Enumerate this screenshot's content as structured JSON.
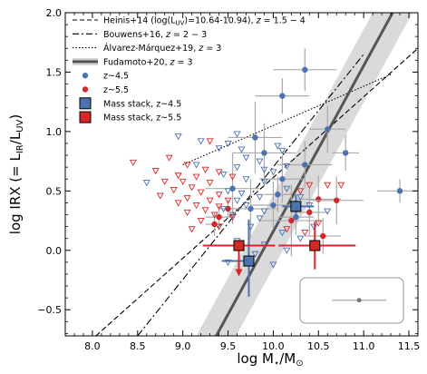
{
  "chart_data": {
    "type": "scatter",
    "xlabel_main": "log M",
    "xlabel_sub": "⋆",
    "xlabel_rest": "/M",
    "xlabel_sub2": "⊙",
    "ylabel": "log IRX (= L",
    "ylabel_sub1": "IR",
    "ylabel_mid": "/L",
    "ylabel_sub2": "UV",
    "ylabel_end": ")",
    "xlim": [
      7.7,
      11.6
    ],
    "ylim": [
      -0.72,
      2.0
    ],
    "xticks": [
      "8.0",
      "8.5",
      "9.0",
      "9.5",
      "10.0",
      "10.5",
      "11.0",
      "11.5"
    ],
    "xtick_values": [
      8.0,
      8.5,
      9.0,
      9.5,
      10.0,
      10.5,
      11.0,
      11.5
    ],
    "yticks": [
      "−0.5",
      "0.0",
      "0.5",
      "1.0",
      "1.5",
      "2.0"
    ],
    "ytick_values": [
      -0.5,
      0.0,
      0.5,
      1.0,
      1.5,
      2.0
    ],
    "legend": [
      {
        "style": "dashed",
        "text": "Heinis+14 (log(L",
        "sub": "UV",
        "text2": ")=10.64-10.94), ",
        "italic": "z",
        "text3": " = 1.5 − 4"
      },
      {
        "style": "dashdot",
        "text": "Bouwens+16, ",
        "italic": "z",
        "text3": " = 2 − 3"
      },
      {
        "style": "dotted",
        "text": "Álvarez-Márquez+19, ",
        "italic": "z",
        "text3": " = 3"
      },
      {
        "style": "band",
        "text": "Fudamoto+20, ",
        "italic": "z",
        "text3": " = 3"
      },
      {
        "style": "blue-dot",
        "text": "z~4.5"
      },
      {
        "style": "red-dot",
        "text": "z~5.5"
      },
      {
        "style": "blue-square",
        "text": "Mass stack, z~4.5"
      },
      {
        "style": "red-square",
        "text": "Mass stack, z~5.5"
      }
    ],
    "colors": {
      "blue": "#4c72b0",
      "red": "#d62728",
      "band": "#d3d3d3",
      "fudamoto": "#555555"
    },
    "lines": {
      "heinis": {
        "x": [
          7.7,
          11.6
        ],
        "y": [
          -0.95,
          1.7
        ]
      },
      "bouwens": {
        "x": [
          8.5,
          11.0
        ],
        "y": [
          -0.72,
          1.65
        ]
      },
      "alvarez": {
        "x": [
          9.0,
          11.3
        ],
        "y": [
          0.72,
          1.48
        ]
      },
      "fudamoto": {
        "x": [
          9.37,
          11.32
        ],
        "y": [
          -0.72,
          2.0
        ]
      }
    },
    "series": [
      {
        "name": "z~4.5",
        "marker": "circle",
        "color": "blue",
        "points": [
          {
            "x": 10.35,
            "y": 1.52,
            "xerr": 0.35,
            "yerr": 0.18
          },
          {
            "x": 10.1,
            "y": 1.3,
            "xerr": 0.3,
            "yerr": 0.15
          },
          {
            "x": 10.6,
            "y": 1.02,
            "xerr": 0.2,
            "yerr": 0.2
          },
          {
            "x": 9.8,
            "y": 0.95,
            "xerr": 0.3,
            "yerr": 0.3
          },
          {
            "x": 9.9,
            "y": 0.82,
            "xerr": 0.35,
            "yerr": 0.25
          },
          {
            "x": 10.8,
            "y": 0.82,
            "xerr": 0.15,
            "yerr": 0.15
          },
          {
            "x": 10.35,
            "y": 0.72,
            "xerr": 0.3,
            "yerr": 0.2
          },
          {
            "x": 10.1,
            "y": 0.6,
            "xerr": 0.25,
            "yerr": 0.2
          },
          {
            "x": 11.4,
            "y": 0.5,
            "xerr": 0.25,
            "yerr": 0.1
          },
          {
            "x": 9.55,
            "y": 0.52,
            "xerr": 0.3,
            "yerr": 0.3
          },
          {
            "x": 10.05,
            "y": 0.47,
            "xerr": 0.15,
            "yerr": 0.15
          },
          {
            "x": 10.0,
            "y": 0.38,
            "xerr": 0.25,
            "yerr": 0.2
          },
          {
            "x": 9.75,
            "y": 0.35,
            "xerr": 0.3,
            "yerr": 0.25
          },
          {
            "x": 10.25,
            "y": 0.28,
            "xerr": 0.2,
            "yerr": 0.15
          }
        ]
      },
      {
        "name": "z~5.5",
        "marker": "circle",
        "color": "red",
        "points": [
          {
            "x": 9.5,
            "y": 0.35,
            "xerr": 0.1,
            "yerr": 0.08
          },
          {
            "x": 9.4,
            "y": 0.28,
            "xerr": 0.15,
            "yerr": 0.1
          },
          {
            "x": 9.35,
            "y": 0.22,
            "xerr": 0.1,
            "yerr": 0.1
          },
          {
            "x": 10.5,
            "y": 0.43,
            "xerr": 0.25,
            "yerr": 0.2
          },
          {
            "x": 10.7,
            "y": 0.42,
            "xerr": 0.3,
            "yerr": 0.2
          },
          {
            "x": 10.4,
            "y": 0.32,
            "xerr": 0.2,
            "yerr": 0.2
          },
          {
            "x": 10.2,
            "y": 0.25,
            "xerr": 0.35,
            "yerr": 0.3
          },
          {
            "x": 10.55,
            "y": 0.12,
            "xerr": 0.2,
            "yerr": 0.15
          }
        ]
      },
      {
        "name": "z~4.5 upper limits",
        "marker": "triangle",
        "color": "blue",
        "points": [
          {
            "x": 8.95,
            "y": 0.96
          },
          {
            "x": 9.6,
            "y": 0.98
          },
          {
            "x": 9.2,
            "y": 0.92
          },
          {
            "x": 9.5,
            "y": 0.9
          },
          {
            "x": 10.05,
            "y": 0.88
          },
          {
            "x": 9.4,
            "y": 0.86
          },
          {
            "x": 9.65,
            "y": 0.85
          },
          {
            "x": 10.1,
            "y": 0.84
          },
          {
            "x": 9.7,
            "y": 0.78
          },
          {
            "x": 9.85,
            "y": 0.75
          },
          {
            "x": 9.15,
            "y": 0.72
          },
          {
            "x": 10.15,
            "y": 0.71
          },
          {
            "x": 9.6,
            "y": 0.7
          },
          {
            "x": 9.9,
            "y": 0.68
          },
          {
            "x": 10.0,
            "y": 0.66
          },
          {
            "x": 9.45,
            "y": 0.64
          },
          {
            "x": 8.6,
            "y": 0.57
          },
          {
            "x": 9.7,
            "y": 0.6
          },
          {
            "x": 9.9,
            "y": 0.58
          },
          {
            "x": 10.15,
            "y": 0.52
          },
          {
            "x": 9.5,
            "y": 0.5
          },
          {
            "x": 9.65,
            "y": 0.48
          },
          {
            "x": 9.85,
            "y": 0.45
          },
          {
            "x": 10.3,
            "y": 0.45
          },
          {
            "x": 9.6,
            "y": 0.42
          },
          {
            "x": 9.7,
            "y": 0.38
          },
          {
            "x": 10.4,
            "y": 0.38
          },
          {
            "x": 9.45,
            "y": 0.35
          },
          {
            "x": 9.9,
            "y": 0.33
          },
          {
            "x": 10.6,
            "y": 0.33
          },
          {
            "x": 9.55,
            "y": 0.3
          },
          {
            "x": 9.85,
            "y": 0.27
          },
          {
            "x": 10.45,
            "y": 0.2
          },
          {
            "x": 9.75,
            "y": 0.2
          },
          {
            "x": 10.1,
            "y": 0.15
          },
          {
            "x": 10.3,
            "y": 0.1
          },
          {
            "x": 9.6,
            "y": 0.08
          },
          {
            "x": 9.9,
            "y": 0.05
          },
          {
            "x": 10.15,
            "y": 0.0
          },
          {
            "x": 9.8,
            "y": -0.03
          },
          {
            "x": 10.0,
            "y": -0.12
          },
          {
            "x": 9.5,
            "y": -0.1
          }
        ]
      },
      {
        "name": "z~5.5 upper limits",
        "marker": "triangle",
        "color": "red",
        "points": [
          {
            "x": 9.3,
            "y": 0.92
          },
          {
            "x": 8.85,
            "y": 0.78
          },
          {
            "x": 8.45,
            "y": 0.74
          },
          {
            "x": 9.05,
            "y": 0.72
          },
          {
            "x": 9.25,
            "y": 0.68
          },
          {
            "x": 8.7,
            "y": 0.67
          },
          {
            "x": 9.4,
            "y": 0.66
          },
          {
            "x": 8.95,
            "y": 0.63
          },
          {
            "x": 9.15,
            "y": 0.62
          },
          {
            "x": 9.55,
            "y": 0.62
          },
          {
            "x": 8.8,
            "y": 0.58
          },
          {
            "x": 9.0,
            "y": 0.58
          },
          {
            "x": 9.3,
            "y": 0.57
          },
          {
            "x": 9.1,
            "y": 0.53
          },
          {
            "x": 8.9,
            "y": 0.51
          },
          {
            "x": 9.2,
            "y": 0.49
          },
          {
            "x": 9.4,
            "y": 0.47
          },
          {
            "x": 8.75,
            "y": 0.46
          },
          {
            "x": 9.05,
            "y": 0.44
          },
          {
            "x": 9.3,
            "y": 0.42
          },
          {
            "x": 9.5,
            "y": 0.42
          },
          {
            "x": 8.95,
            "y": 0.4
          },
          {
            "x": 9.15,
            "y": 0.38
          },
          {
            "x": 9.4,
            "y": 0.37
          },
          {
            "x": 9.25,
            "y": 0.34
          },
          {
            "x": 9.05,
            "y": 0.32
          },
          {
            "x": 9.35,
            "y": 0.3
          },
          {
            "x": 9.55,
            "y": 0.28
          },
          {
            "x": 9.2,
            "y": 0.25
          },
          {
            "x": 9.4,
            "y": 0.2
          },
          {
            "x": 9.1,
            "y": 0.18
          },
          {
            "x": 10.4,
            "y": 0.55
          },
          {
            "x": 10.6,
            "y": 0.55
          },
          {
            "x": 10.3,
            "y": 0.5
          },
          {
            "x": 10.5,
            "y": 0.23
          },
          {
            "x": 10.75,
            "y": 0.55
          },
          {
            "x": 10.15,
            "y": 0.18
          },
          {
            "x": 10.35,
            "y": 0.15
          }
        ]
      },
      {
        "name": "Mass stack, z~4.5",
        "marker": "square",
        "color": "blue",
        "points": [
          {
            "x": 9.73,
            "y": -0.09,
            "xlo": 0.3,
            "xhi": 0.0,
            "ylo": 0.3,
            "yhi": 0.35
          },
          {
            "x": 10.25,
            "y": 0.37,
            "xlo": 0.15,
            "xhi": 0.2,
            "ylo": 0.1,
            "yhi": 0.1
          }
        ]
      },
      {
        "name": "Mass stack, z~5.5",
        "marker": "square",
        "color": "red",
        "points": [
          {
            "x": 9.62,
            "y": 0.04,
            "xlo": 0.4,
            "xhi": 0.4,
            "ylo": 0.0,
            "yhi": 0.0,
            "arrow_down": true
          },
          {
            "x": 10.46,
            "y": 0.04,
            "xlo": 0.4,
            "xhi": 0.45,
            "ylo": 0.2,
            "yhi": 0.2
          }
        ]
      }
    ],
    "typical_error": {
      "x": 10.95,
      "y": -0.42,
      "xerr": 0.3
    }
  }
}
